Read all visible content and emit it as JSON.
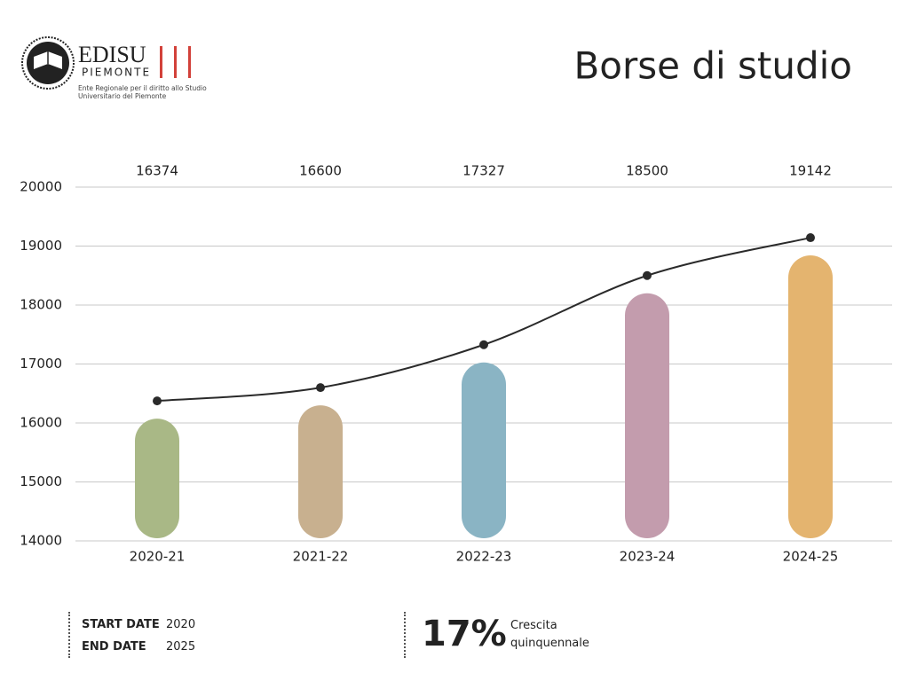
{
  "logo": {
    "name": "EDISU",
    "region": "PIEMONTE",
    "tagline": "Ente Regionale per il diritto allo Studio Universitario del Piemonte"
  },
  "chart_data": {
    "type": "bar-line",
    "title": "Borse di studio",
    "categories": [
      "2020-21",
      "2021-22",
      "2022-23",
      "2023-24",
      "2024-25"
    ],
    "values": [
      16374,
      16600,
      17327,
      18500,
      19142
    ],
    "colors": [
      "#a9b886",
      "#c8b08f",
      "#8ab4c4",
      "#c39cad",
      "#e4b46f"
    ],
    "line_color": "#2a2a2a",
    "ylim": [
      14000,
      20000
    ],
    "yticks": [
      14000,
      15000,
      16000,
      17000,
      18000,
      19000,
      20000
    ],
    "grid": true
  },
  "footer": {
    "start_label": "START DATE",
    "start_value": "2020",
    "end_label": "END DATE",
    "end_value": "2025",
    "growth": "17%",
    "growth_label": "Crescita quinquennale"
  }
}
